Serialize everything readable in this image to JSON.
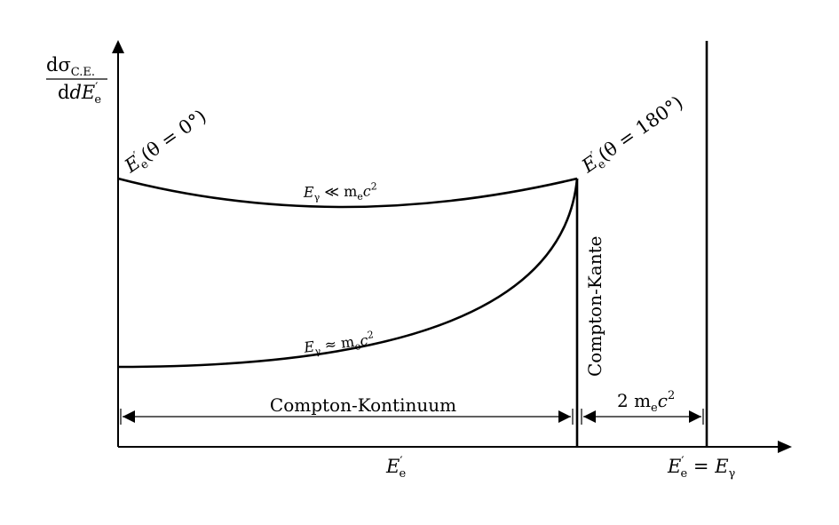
{
  "axes": {
    "y_label_num_main": "dσ",
    "y_label_num_sub": "C.E.",
    "y_label_den_main": "dE",
    "y_label_den_prime": "′",
    "y_label_den_sub": "e",
    "x_label_main": "E",
    "x_label_prime": "′",
    "x_label_sub": "e",
    "x_end_left_main": "E",
    "x_end_left_prime": "′",
    "x_end_left_sub": "e",
    "x_end_eq": " = ",
    "x_end_right_main": "E",
    "x_end_right_sub": "γ"
  },
  "annotations": {
    "theta0": {
      "main": "E",
      "prime": "′",
      "sub": "e",
      "rest": "(θ = 0°)"
    },
    "theta180": {
      "main": "E",
      "prime": "′",
      "sub": "e",
      "rest": "(θ = 180°)"
    },
    "curve_low": {
      "main": "E",
      "sub": "γ",
      "rel": " ≪ m",
      "sub2": "e",
      "tail": "c",
      "sup": "2"
    },
    "curve_high": {
      "main": "E",
      "sub": "γ",
      "rel": " ≈ m",
      "sub2": "e",
      "tail": "c",
      "sup": "2"
    },
    "edge": "Compton-Kante",
    "continuum": "Compton-Kontinuum",
    "gap": {
      "pre": "2 m",
      "sub": "e",
      "tail": "c",
      "sup": "2"
    }
  }
}
